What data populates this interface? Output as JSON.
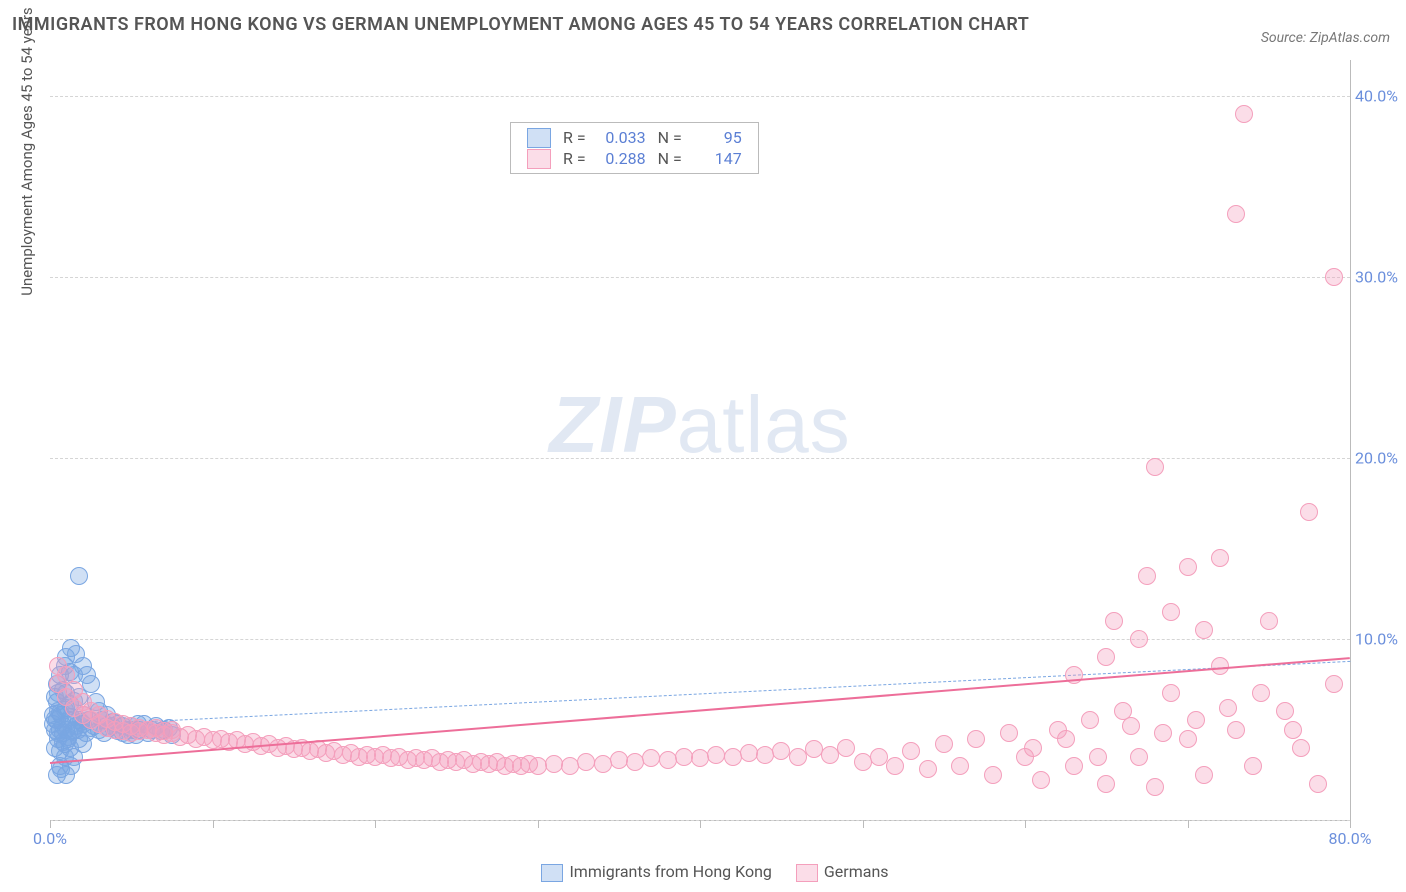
{
  "title": "IMMIGRANTS FROM HONG KONG VS GERMAN UNEMPLOYMENT AMONG AGES 45 TO 54 YEARS CORRELATION CHART",
  "source": "Source: ZipAtlas.com",
  "y_axis_label": "Unemployment Among Ages 45 to 54 years",
  "watermark_a": "ZIP",
  "watermark_b": "atlas",
  "chart": {
    "type": "scatter",
    "background_color": "#ffffff",
    "grid_color": "#d5d5d5",
    "axis_line_color": "#bbbbbb",
    "tick_label_color": "#6b8fdc",
    "xlim": [
      0,
      80
    ],
    "ylim": [
      0,
      42
    ],
    "x_ticks": [
      0,
      10,
      20,
      30,
      40,
      50,
      60,
      70,
      80
    ],
    "x_tick_labels": {
      "0": "0.0%",
      "80": "80.0%"
    },
    "y_ticks": [
      10,
      20,
      30,
      40
    ],
    "y_tick_labels": {
      "10": "10.0%",
      "20": "20.0%",
      "30": "30.0%",
      "40": "40.0%"
    },
    "y_grid_extra": [
      0
    ],
    "marker_radius": 9,
    "marker_border_width": 1.5,
    "series": [
      {
        "name": "Immigrants from Hong Kong",
        "fill": "rgba(120,165,226,0.35)",
        "stroke": "#7aa6e2",
        "R": "0.033",
        "N": "95",
        "trend": {
          "y0": 5.2,
          "y1": 8.8,
          "color": "#7aa6e2",
          "width": 1,
          "dash": true
        },
        "points": [
          [
            0.3,
            5.0
          ],
          [
            0.5,
            4.5
          ],
          [
            0.4,
            5.5
          ],
          [
            0.6,
            5.0
          ],
          [
            0.8,
            4.8
          ],
          [
            0.2,
            5.3
          ],
          [
            0.7,
            5.8
          ],
          [
            0.9,
            4.2
          ],
          [
            1.0,
            5.0
          ],
          [
            1.2,
            5.5
          ],
          [
            0.5,
            6.0
          ],
          [
            0.3,
            4.0
          ],
          [
            0.4,
            6.5
          ],
          [
            0.6,
            3.8
          ],
          [
            0.8,
            5.2
          ],
          [
            1.1,
            4.5
          ],
          [
            1.3,
            5.7
          ],
          [
            1.5,
            5.0
          ],
          [
            1.0,
            6.2
          ],
          [
            0.2,
            5.8
          ],
          [
            1.7,
            5.0
          ],
          [
            2.0,
            5.3
          ],
          [
            2.2,
            4.8
          ],
          [
            2.5,
            5.1
          ],
          [
            1.8,
            5.5
          ],
          [
            1.2,
            4.0
          ],
          [
            0.9,
            3.5
          ],
          [
            0.6,
            3.0
          ],
          [
            0.4,
            2.5
          ],
          [
            0.7,
            2.8
          ],
          [
            1.0,
            2.5
          ],
          [
            1.3,
            3.0
          ],
          [
            1.5,
            3.5
          ],
          [
            1.8,
            4.5
          ],
          [
            2.0,
            4.2
          ],
          [
            0.3,
            6.8
          ],
          [
            0.5,
            7.0
          ],
          [
            0.4,
            7.5
          ],
          [
            0.8,
            7.2
          ],
          [
            1.0,
            7.0
          ],
          [
            0.6,
            8.0
          ],
          [
            0.9,
            8.5
          ],
          [
            1.2,
            8.2
          ],
          [
            1.5,
            8.0
          ],
          [
            1.0,
            9.0
          ],
          [
            1.3,
            9.5
          ],
          [
            1.6,
            9.2
          ],
          [
            2.0,
            8.5
          ],
          [
            2.3,
            8.0
          ],
          [
            2.5,
            7.5
          ],
          [
            2.8,
            6.5
          ],
          [
            3.0,
            6.0
          ],
          [
            3.2,
            5.5
          ],
          [
            3.5,
            5.8
          ],
          [
            3.8,
            5.2
          ],
          [
            4.0,
            5.0
          ],
          [
            4.2,
            5.3
          ],
          [
            4.5,
            4.8
          ],
          [
            4.8,
            5.0
          ],
          [
            5.0,
            5.2
          ],
          [
            5.3,
            4.7
          ],
          [
            5.5,
            5.0
          ],
          [
            5.8,
            5.3
          ],
          [
            6.0,
            4.8
          ],
          [
            6.3,
            5.0
          ],
          [
            6.5,
            5.2
          ],
          [
            6.8,
            4.9
          ],
          [
            7.0,
            5.0
          ],
          [
            7.3,
            5.1
          ],
          [
            7.5,
            4.7
          ],
          [
            1.8,
            13.5
          ],
          [
            0.5,
            4.8
          ],
          [
            0.8,
            4.3
          ],
          [
            1.1,
            4.6
          ],
          [
            1.4,
            4.9
          ],
          [
            1.6,
            5.2
          ],
          [
            1.9,
            5.4
          ],
          [
            0.3,
            5.6
          ],
          [
            0.6,
            5.9
          ],
          [
            0.9,
            6.1
          ],
          [
            1.2,
            6.4
          ],
          [
            1.5,
            6.6
          ],
          [
            1.8,
            6.8
          ],
          [
            2.1,
            5.8
          ],
          [
            2.4,
            5.5
          ],
          [
            2.7,
            5.2
          ],
          [
            3.0,
            5.0
          ],
          [
            3.3,
            4.8
          ],
          [
            3.6,
            5.1
          ],
          [
            3.9,
            5.4
          ],
          [
            4.2,
            4.9
          ],
          [
            4.5,
            5.2
          ],
          [
            4.8,
            4.7
          ],
          [
            5.1,
            5.0
          ],
          [
            5.4,
            5.3
          ]
        ]
      },
      {
        "name": "Germans",
        "fill": "rgba(244,159,188,0.35)",
        "stroke": "#f49fbc",
        "R": "0.288",
        "N": "147",
        "trend": {
          "y0": 3.2,
          "y1": 9.0,
          "color": "#ed6e99",
          "width": 2.5,
          "dash": false
        },
        "points": [
          [
            0.5,
            7.5
          ],
          [
            1.0,
            6.8
          ],
          [
            1.5,
            6.2
          ],
          [
            2.0,
            5.8
          ],
          [
            2.5,
            5.5
          ],
          [
            3.0,
            5.3
          ],
          [
            3.5,
            5.1
          ],
          [
            4.0,
            5.0
          ],
          [
            4.5,
            4.9
          ],
          [
            5.0,
            4.8
          ],
          [
            5.5,
            4.9
          ],
          [
            6.0,
            5.0
          ],
          [
            6.5,
            4.8
          ],
          [
            7.0,
            4.7
          ],
          [
            7.5,
            4.8
          ],
          [
            8.0,
            4.6
          ],
          [
            8.5,
            4.7
          ],
          [
            9.0,
            4.5
          ],
          [
            9.5,
            4.6
          ],
          [
            10.0,
            4.4
          ],
          [
            10.5,
            4.5
          ],
          [
            11.0,
            4.3
          ],
          [
            11.5,
            4.4
          ],
          [
            12.0,
            4.2
          ],
          [
            12.5,
            4.3
          ],
          [
            13.0,
            4.1
          ],
          [
            13.5,
            4.2
          ],
          [
            14.0,
            4.0
          ],
          [
            14.5,
            4.1
          ],
          [
            15.0,
            3.9
          ],
          [
            15.5,
            4.0
          ],
          [
            16.0,
            3.8
          ],
          [
            16.5,
            3.9
          ],
          [
            17.0,
            3.7
          ],
          [
            17.5,
            3.8
          ],
          [
            18.0,
            3.6
          ],
          [
            18.5,
            3.7
          ],
          [
            19.0,
            3.5
          ],
          [
            19.5,
            3.6
          ],
          [
            20.0,
            3.5
          ],
          [
            20.5,
            3.6
          ],
          [
            21.0,
            3.4
          ],
          [
            21.5,
            3.5
          ],
          [
            22.0,
            3.3
          ],
          [
            22.5,
            3.4
          ],
          [
            23.0,
            3.3
          ],
          [
            23.5,
            3.4
          ],
          [
            24.0,
            3.2
          ],
          [
            24.5,
            3.3
          ],
          [
            25.0,
            3.2
          ],
          [
            25.5,
            3.3
          ],
          [
            26.0,
            3.1
          ],
          [
            26.5,
            3.2
          ],
          [
            27.0,
            3.1
          ],
          [
            27.5,
            3.2
          ],
          [
            28.0,
            3.0
          ],
          [
            28.5,
            3.1
          ],
          [
            29.0,
            3.0
          ],
          [
            29.5,
            3.1
          ],
          [
            30.0,
            3.0
          ],
          [
            31.0,
            3.1
          ],
          [
            32.0,
            3.0
          ],
          [
            33.0,
            3.2
          ],
          [
            34.0,
            3.1
          ],
          [
            35.0,
            3.3
          ],
          [
            36.0,
            3.2
          ],
          [
            37.0,
            3.4
          ],
          [
            38.0,
            3.3
          ],
          [
            39.0,
            3.5
          ],
          [
            40.0,
            3.4
          ],
          [
            41.0,
            3.6
          ],
          [
            42.0,
            3.5
          ],
          [
            43.0,
            3.7
          ],
          [
            44.0,
            3.6
          ],
          [
            45.0,
            3.8
          ],
          [
            46.0,
            3.5
          ],
          [
            47.0,
            3.9
          ],
          [
            48.0,
            3.6
          ],
          [
            49.0,
            4.0
          ],
          [
            50.0,
            3.2
          ],
          [
            51.0,
            3.5
          ],
          [
            52.0,
            3.0
          ],
          [
            53.0,
            3.8
          ],
          [
            54.0,
            2.8
          ],
          [
            55.0,
            4.2
          ],
          [
            56.0,
            3.0
          ],
          [
            57.0,
            4.5
          ],
          [
            58.0,
            2.5
          ],
          [
            59.0,
            4.8
          ],
          [
            60.0,
            3.5
          ],
          [
            61.0,
            2.2
          ],
          [
            62.0,
            5.0
          ],
          [
            63.0,
            3.0
          ],
          [
            64.0,
            5.5
          ],
          [
            65.0,
            2.0
          ],
          [
            66.0,
            6.0
          ],
          [
            67.0,
            3.5
          ],
          [
            68.0,
            1.8
          ],
          [
            69.0,
            7.0
          ],
          [
            70.0,
            4.5
          ],
          [
            71.0,
            2.5
          ],
          [
            72.0,
            8.5
          ],
          [
            73.0,
            5.0
          ],
          [
            74.0,
            3.0
          ],
          [
            75.0,
            11.0
          ],
          [
            76.0,
            6.0
          ],
          [
            77.0,
            4.0
          ],
          [
            78.0,
            2.0
          ],
          [
            79.0,
            7.5
          ],
          [
            60.5,
            4.0
          ],
          [
            62.5,
            4.5
          ],
          [
            64.5,
            3.5
          ],
          [
            66.5,
            5.2
          ],
          [
            68.5,
            4.8
          ],
          [
            70.5,
            5.5
          ],
          [
            72.5,
            6.2
          ],
          [
            74.5,
            7.0
          ],
          [
            76.5,
            5.0
          ],
          [
            65.5,
            11.0
          ],
          [
            67.5,
            13.5
          ],
          [
            70.0,
            14.0
          ],
          [
            72.0,
            14.5
          ],
          [
            71.0,
            10.5
          ],
          [
            68.0,
            19.5
          ],
          [
            73.0,
            33.5
          ],
          [
            73.5,
            39.0
          ],
          [
            79.0,
            30.0
          ],
          [
            77.5,
            17.0
          ],
          [
            63.0,
            8.0
          ],
          [
            65.0,
            9.0
          ],
          [
            67.0,
            10.0
          ],
          [
            69.0,
            11.5
          ],
          [
            0.5,
            8.5
          ],
          [
            1.0,
            8.0
          ],
          [
            1.5,
            7.2
          ],
          [
            2.0,
            6.5
          ],
          [
            2.5,
            6.0
          ],
          [
            3.0,
            5.8
          ],
          [
            3.5,
            5.6
          ],
          [
            4.0,
            5.4
          ],
          [
            4.5,
            5.3
          ],
          [
            5.0,
            5.2
          ],
          [
            5.5,
            5.1
          ],
          [
            6.0,
            5.0
          ],
          [
            6.5,
            5.1
          ],
          [
            7.0,
            4.9
          ],
          [
            7.5,
            5.0
          ]
        ]
      }
    ]
  },
  "legend_top": {
    "cols": [
      "R =",
      "N ="
    ]
  },
  "bottom_legend": [
    {
      "label": "Immigrants from Hong Kong"
    },
    {
      "label": "Germans"
    }
  ]
}
